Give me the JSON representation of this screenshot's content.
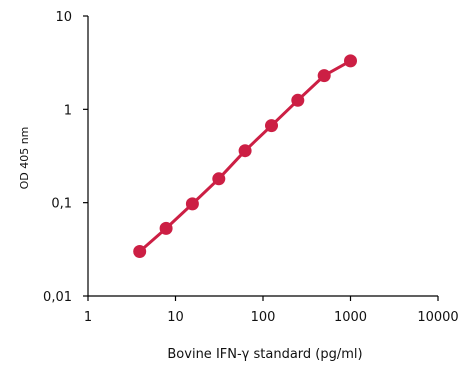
{
  "chart_data": {
    "type": "line",
    "title": "",
    "xlabel": "Bovine IFN-γ standard (pg/ml)",
    "ylabel": "OD 405 nm",
    "xscale": "log",
    "yscale": "log",
    "xlim": [
      1,
      10000
    ],
    "ylim": [
      0.01,
      10
    ],
    "x_ticks": [
      1,
      10,
      100,
      1000,
      10000
    ],
    "x_tick_labels": [
      "1",
      "10",
      "100",
      "1000",
      "10000"
    ],
    "y_ticks": [
      0.01,
      0.1,
      1,
      10
    ],
    "y_tick_labels": [
      "0,01",
      "0,1",
      "1",
      "10"
    ],
    "grid": false,
    "legend": "none",
    "series": [
      {
        "color": "#cc1f44",
        "marker": "circle",
        "x": [
          3.9,
          7.8,
          15.6,
          31.25,
          62.5,
          125,
          250,
          500,
          1000
        ],
        "y": [
          0.03,
          0.053,
          0.097,
          0.18,
          0.36,
          0.67,
          1.25,
          2.3,
          3.3
        ]
      }
    ]
  }
}
